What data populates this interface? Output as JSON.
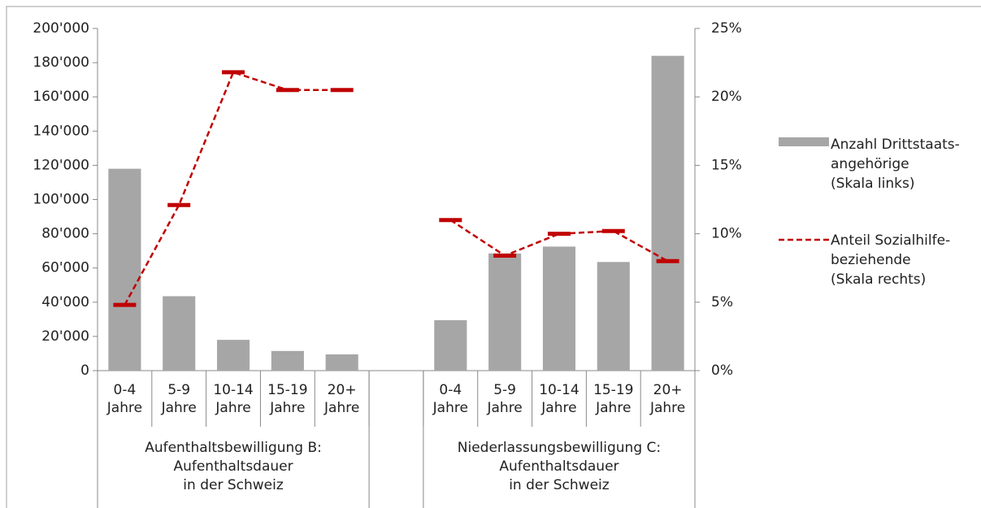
{
  "chart_data": {
    "type": "bar",
    "categories": [
      "0-4\nJahre",
      "5-9\nJahre",
      "10-14\nJahre",
      "15-19\nJahre",
      "20+\nJahre",
      null,
      "0-4\nJahre",
      "5-9\nJahre",
      "10-14\nJahre",
      "15-19\nJahre",
      "20+\nJahre"
    ],
    "groups": [
      "Aufenthaltsbewilligung B:\nAufenthaltsdauer\nin der Schweiz",
      "Niederlassungsbewilligung C:\nAufenthaltsdauer\nin der Schweiz"
    ],
    "series": [
      {
        "name": "Anzahl Drittstaats-\nangehörige\n(Skala links)",
        "type": "bar",
        "color": "#a6a6a6",
        "values": [
          118000,
          43500,
          18000,
          11500,
          9500,
          null,
          29500,
          68500,
          72500,
          63500,
          184000
        ]
      },
      {
        "name": "Anteil Sozialhilfe-\nbeziehende\n(Skala rechts)",
        "type": "line",
        "axis": "y2",
        "color": "#c00000",
        "values": [
          4.8,
          12.1,
          21.8,
          20.5,
          20.5,
          null,
          11.0,
          8.4,
          10.0,
          10.2,
          8.0
        ]
      }
    ],
    "ylim": [
      0,
      200000
    ],
    "yticks": [
      0,
      {
        "value": 20000,
        "label": "20'000"
      },
      {
        "value": 40000,
        "label": "40'000"
      },
      {
        "value": 60000,
        "label": "60'000"
      },
      {
        "value": 80000,
        "label": "80'000"
      },
      {
        "value": 100000,
        "label": "100'000"
      },
      {
        "value": 120000,
        "label": "120'000"
      },
      {
        "value": 140000,
        "label": "140'000"
      },
      {
        "value": 160000,
        "label": "160'000"
      },
      {
        "value": 180000,
        "label": "180'000"
      },
      {
        "value": 200000,
        "label": "200'000"
      }
    ],
    "y2lim": [
      0,
      25
    ],
    "y2ticks": [
      {
        "value": 0,
        "label": "0%"
      },
      {
        "value": 5,
        "label": "5%"
      },
      {
        "value": 10,
        "label": "10%"
      },
      {
        "value": 15,
        "label": "15%"
      },
      {
        "value": 20,
        "label": "20%"
      },
      {
        "value": 25,
        "label": "25%"
      }
    ],
    "legend": "right"
  }
}
